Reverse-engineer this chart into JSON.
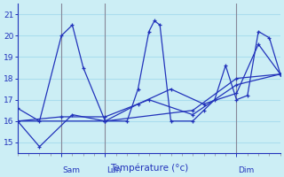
{
  "xlabel": "Température (°c)",
  "bg_color": "#cceef5",
  "line_color": "#2233bb",
  "grid_color": "#aaddee",
  "vline_color": "#888899",
  "axis_color": "#2233bb",
  "ylim": [
    14.5,
    21.5
  ],
  "yticks": [
    15,
    16,
    17,
    18,
    19,
    20,
    21
  ],
  "xlim": [
    0,
    48
  ],
  "n_gridcols": 16,
  "day_ticks": [
    8,
    16,
    40
  ],
  "day_labels": [
    "Sam",
    "Lun",
    "Dim"
  ],
  "series": [
    {
      "x": [
        0,
        4,
        8,
        10,
        12,
        16,
        20,
        22,
        24,
        25,
        26,
        28,
        32,
        34,
        36,
        38,
        40,
        42,
        44,
        46,
        48
      ],
      "y": [
        16.6,
        16.0,
        20.0,
        20.5,
        18.5,
        16.0,
        16.0,
        17.5,
        20.2,
        20.7,
        20.5,
        16.0,
        16.0,
        16.5,
        17.0,
        18.6,
        17.0,
        17.2,
        20.2,
        19.9,
        18.2
      ]
    },
    {
      "x": [
        0,
        4,
        10,
        16,
        22,
        28,
        34,
        40,
        44,
        48
      ],
      "y": [
        16.0,
        14.8,
        16.3,
        16.0,
        16.8,
        17.5,
        16.8,
        17.3,
        19.6,
        18.2
      ]
    },
    {
      "x": [
        0,
        8,
        16,
        24,
        32,
        40,
        48
      ],
      "y": [
        16.0,
        16.2,
        16.2,
        17.0,
        16.3,
        17.7,
        18.2
      ]
    },
    {
      "x": [
        0,
        16,
        32,
        40,
        48
      ],
      "y": [
        16.0,
        16.0,
        16.5,
        18.0,
        18.2
      ]
    }
  ]
}
